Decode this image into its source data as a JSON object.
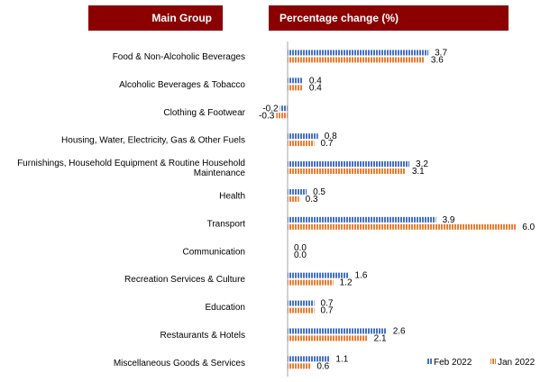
{
  "headers": {
    "left": "Main Group",
    "right": "Percentage change (%)"
  },
  "colors": {
    "header_bg": "#8b0000",
    "feb": "#4472c4",
    "jan": "#ed7d31",
    "axis": "#a6a6a6"
  },
  "chart_data": {
    "type": "bar",
    "orientation": "horizontal",
    "title": "Percentage change (%)",
    "category_header": "Main Group",
    "categories": [
      [
        "Food & Non-Alcoholic Beverages"
      ],
      [
        "Alcoholic Beverages & Tobacco"
      ],
      [
        "Clothing & Footwear"
      ],
      [
        "Housing, Water, Electricity, Gas & Other Fuels"
      ],
      [
        "Furnishings, Household Equipment & Routine Household",
        "Maintenance"
      ],
      [
        "Health"
      ],
      [
        "Transport"
      ],
      [
        "Communication"
      ],
      [
        "Recreation Services & Culture"
      ],
      [
        "Education"
      ],
      [
        "Restaurants & Hotels"
      ],
      [
        "Miscellaneous Goods & Services"
      ]
    ],
    "series": [
      {
        "name": "Feb 2022",
        "values": [
          3.7,
          0.4,
          -0.2,
          0.8,
          3.2,
          0.5,
          3.9,
          0.0,
          1.6,
          0.7,
          2.6,
          1.1
        ],
        "labels": [
          "3.7",
          "0.4",
          "-0.2",
          "0.8",
          "3.2",
          "0.5",
          "3.9",
          "0.0",
          "1.6",
          "0.7",
          "2.6",
          "1.1"
        ]
      },
      {
        "name": "Jan 2022",
        "values": [
          3.6,
          0.4,
          -0.3,
          0.7,
          3.1,
          0.3,
          6.0,
          0.0,
          1.2,
          0.7,
          2.1,
          0.6
        ],
        "labels": [
          "3.6",
          "0.4",
          "-0.3",
          "0.7",
          "3.1",
          "0.3",
          "6.0",
          "0.0",
          "1.2",
          "0.7",
          "2.1",
          "0.6"
        ]
      }
    ],
    "xlim": [
      -0.3,
      6.0
    ],
    "legend": "bottom-right"
  }
}
